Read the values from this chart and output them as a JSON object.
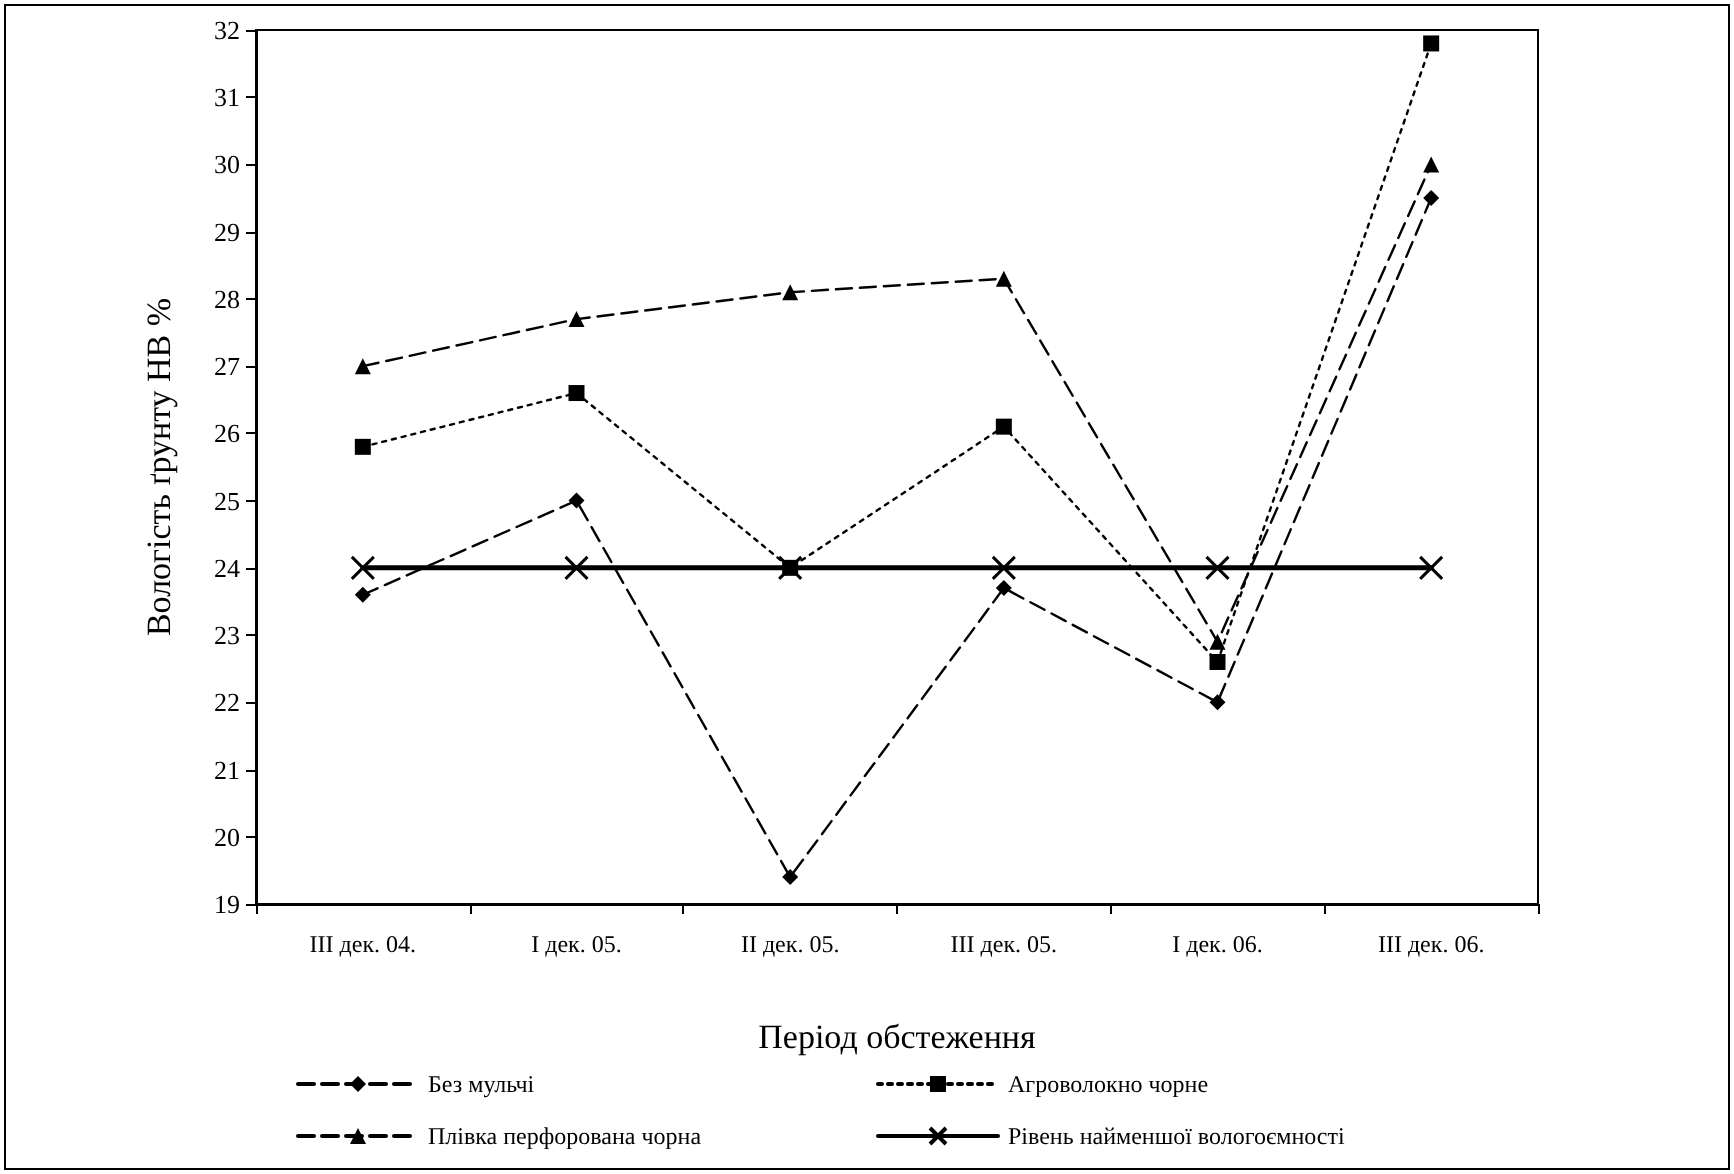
{
  "chart_data": {
    "type": "line",
    "xlabel": "Період обстеження",
    "ylabel": "Вологість ґрунту НВ %",
    "categories": [
      "III дек. 04.",
      "I дек. 05.",
      "II дек. 05.",
      "III дек. 05.",
      "I дек. 06.",
      "III дек. 06."
    ],
    "series": [
      {
        "name": "Без мульчі",
        "color": "#000000",
        "marker": "diamond",
        "line_style": "dashed",
        "values": [
          23.6,
          25.0,
          19.4,
          23.7,
          22.0,
          29.5
        ]
      },
      {
        "name": "Агроволокно чорне",
        "color": "#000000",
        "marker": "square",
        "line_style": "dotted",
        "values": [
          25.8,
          26.6,
          24.0,
          26.1,
          22.6,
          31.8
        ]
      },
      {
        "name": "Плівка перфорована чорна",
        "color": "#000000",
        "marker": "triangle",
        "line_style": "dashed",
        "values": [
          27.0,
          27.7,
          28.1,
          28.3,
          22.9,
          30.0
        ]
      },
      {
        "name": "Рівень найменшої вологоємності",
        "color": "#000000",
        "marker": "cross",
        "line_style": "solid",
        "values": [
          24,
          24,
          24,
          24,
          24,
          24
        ]
      }
    ],
    "ylim": [
      19,
      32
    ],
    "yticks": [
      19,
      20,
      21,
      22,
      23,
      24,
      25,
      26,
      27,
      28,
      29,
      30,
      31,
      32
    ],
    "grid": false,
    "legend": "bottom"
  }
}
